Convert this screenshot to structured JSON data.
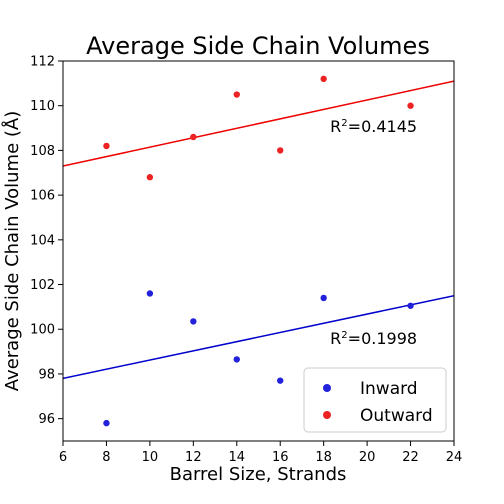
{
  "chart_data": {
    "type": "scatter",
    "title": "Average Side Chain Volumes",
    "xlabel": "Barrel Size, Strands",
    "ylabel": "Average Side Chain Volume (Å)",
    "xlim": [
      6,
      24
    ],
    "ylim": [
      95,
      112
    ],
    "xticks": [
      6,
      8,
      10,
      12,
      14,
      16,
      18,
      20,
      22,
      24
    ],
    "yticks": [
      96,
      98,
      100,
      102,
      104,
      106,
      108,
      110,
      112
    ],
    "grid": false,
    "legend_position": "bottom-right",
    "series": [
      {
        "name": "Inward",
        "color": "#2222dd",
        "line_color": "#0000cc",
        "points": [
          [
            8,
            95.8
          ],
          [
            10,
            101.6
          ],
          [
            12,
            100.35
          ],
          [
            14,
            98.65
          ],
          [
            16,
            97.7
          ],
          [
            18,
            101.4
          ],
          [
            22,
            101.05
          ]
        ],
        "fit": {
          "start": [
            6,
            97.8
          ],
          "end": [
            24,
            101.5
          ]
        },
        "r2_label": "R²=0.1998",
        "r2_base": "R",
        "r2_sup": "2",
        "r2_value": "=0.1998",
        "r2_anchor": [
          18.3,
          99.6
        ]
      },
      {
        "name": "Outward",
        "color": "#ee2222",
        "line_color": "#ee0000",
        "points": [
          [
            8,
            108.2
          ],
          [
            10,
            106.8
          ],
          [
            12,
            108.6
          ],
          [
            14,
            110.5
          ],
          [
            16,
            108.0
          ],
          [
            18,
            111.2
          ],
          [
            22,
            110.0
          ]
        ],
        "fit": {
          "start": [
            6,
            107.3
          ],
          "end": [
            24,
            111.1
          ]
        },
        "r2_label": "R²=0.4145",
        "r2_base": "R",
        "r2_sup": "2",
        "r2_value": "=0.4145",
        "r2_anchor": [
          18.3,
          109.1
        ]
      }
    ]
  }
}
